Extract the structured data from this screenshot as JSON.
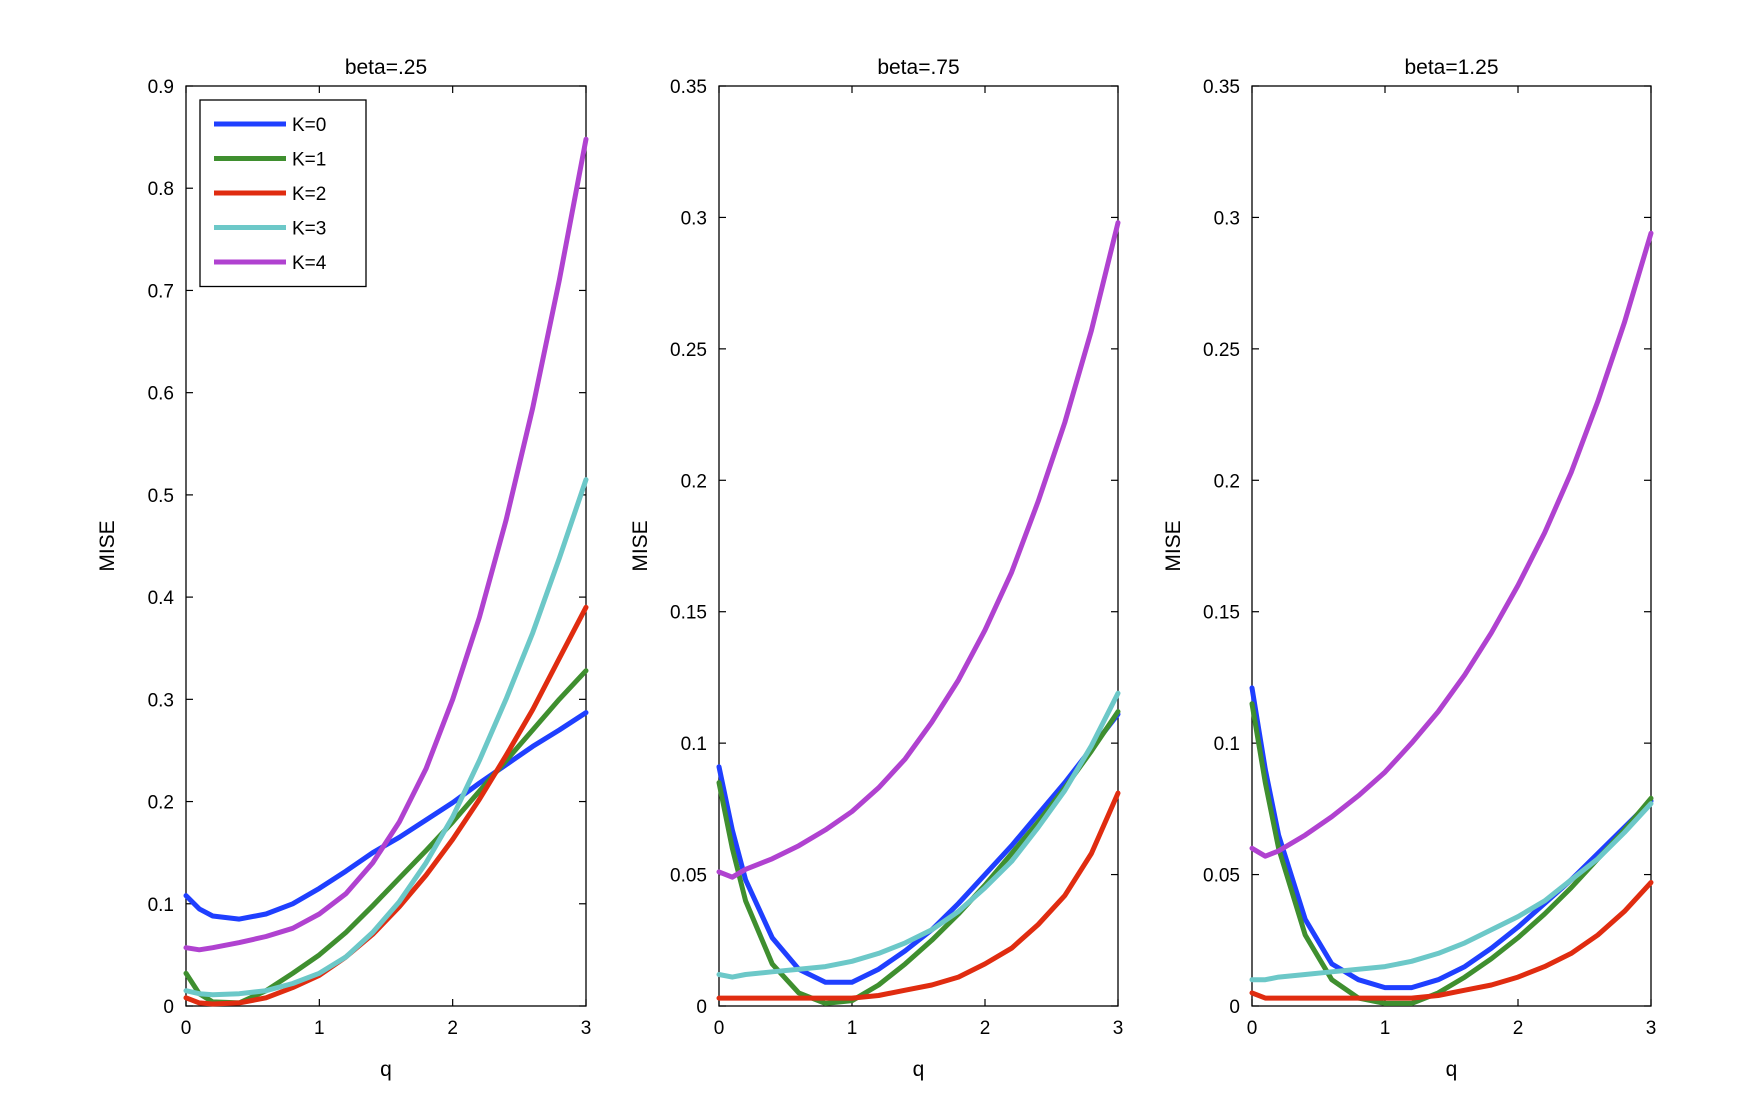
{
  "chart_data": [
    {
      "type": "line",
      "title": "beta=.25",
      "xlabel": "q",
      "ylabel": "MISE",
      "xlim": [
        0,
        3
      ],
      "ylim": [
        0,
        0.9
      ],
      "xticks": [
        0,
        1,
        2,
        3
      ],
      "xtick_labels": [
        "0",
        "1",
        "2",
        "3"
      ],
      "yticks": [
        0,
        0.1,
        0.2,
        0.3,
        0.4,
        0.5,
        0.6,
        0.7,
        0.8,
        0.9
      ],
      "ytick_labels": [
        "0",
        "0.1",
        "0.2",
        "0.3",
        "0.4",
        "0.5",
        "0.6",
        "0.7",
        "0.8",
        "0.9"
      ],
      "legend": "top-left",
      "x": [
        0,
        0.1,
        0.2,
        0.4,
        0.6,
        0.8,
        1.0,
        1.2,
        1.4,
        1.6,
        1.8,
        2.0,
        2.2,
        2.4,
        2.6,
        2.8,
        3.0
      ],
      "series": [
        {
          "name": "K=0",
          "color": "#1f3fff",
          "values": [
            0.108,
            0.095,
            0.088,
            0.085,
            0.09,
            0.1,
            0.115,
            0.132,
            0.15,
            0.165,
            0.182,
            0.199,
            0.218,
            0.236,
            0.254,
            0.27,
            0.287
          ]
        },
        {
          "name": "K=1",
          "color": "#3f8f2f",
          "values": [
            0.032,
            0.012,
            0.004,
            0.003,
            0.015,
            0.032,
            0.05,
            0.072,
            0.098,
            0.125,
            0.152,
            0.18,
            0.21,
            0.24,
            0.27,
            0.3,
            0.328
          ]
        },
        {
          "name": "K=2",
          "color": "#e02c10",
          "values": [
            0.008,
            0.003,
            0.002,
            0.003,
            0.008,
            0.018,
            0.03,
            0.048,
            0.07,
            0.097,
            0.128,
            0.163,
            0.202,
            0.245,
            0.29,
            0.34,
            0.39
          ]
        },
        {
          "name": "K=3",
          "color": "#6cc8c8",
          "values": [
            0.015,
            0.012,
            0.011,
            0.012,
            0.015,
            0.022,
            0.032,
            0.048,
            0.072,
            0.102,
            0.14,
            0.185,
            0.24,
            0.3,
            0.365,
            0.438,
            0.515
          ]
        },
        {
          "name": "K=4",
          "color": "#b042d0",
          "values": [
            0.057,
            0.055,
            0.057,
            0.062,
            0.068,
            0.076,
            0.09,
            0.11,
            0.14,
            0.18,
            0.232,
            0.3,
            0.38,
            0.475,
            0.585,
            0.71,
            0.848
          ]
        }
      ]
    },
    {
      "type": "line",
      "title": "beta=.75",
      "xlabel": "q",
      "ylabel": "MISE",
      "xlim": [
        0,
        3
      ],
      "ylim": [
        0,
        0.35
      ],
      "xticks": [
        0,
        1,
        2,
        3
      ],
      "xtick_labels": [
        "0",
        "1",
        "2",
        "3"
      ],
      "yticks": [
        0,
        0.05,
        0.1,
        0.15,
        0.2,
        0.25,
        0.3,
        0.35
      ],
      "ytick_labels": [
        "0",
        "0.05",
        "0.1",
        "0.15",
        "0.2",
        "0.25",
        "0.3",
        "0.35"
      ],
      "x": [
        0,
        0.1,
        0.2,
        0.4,
        0.6,
        0.8,
        1.0,
        1.2,
        1.4,
        1.6,
        1.8,
        2.0,
        2.2,
        2.4,
        2.6,
        2.8,
        3.0
      ],
      "series": [
        {
          "name": "K=0",
          "color": "#1f3fff",
          "values": [
            0.091,
            0.067,
            0.048,
            0.026,
            0.014,
            0.009,
            0.009,
            0.014,
            0.021,
            0.029,
            0.039,
            0.05,
            0.061,
            0.073,
            0.085,
            0.098,
            0.111
          ]
        },
        {
          "name": "K=1",
          "color": "#3f8f2f",
          "values": [
            0.085,
            0.06,
            0.04,
            0.016,
            0.005,
            0.001,
            0.002,
            0.008,
            0.016,
            0.025,
            0.035,
            0.046,
            0.058,
            0.07,
            0.083,
            0.097,
            0.112
          ]
        },
        {
          "name": "K=2",
          "color": "#e02c10",
          "values": [
            0.003,
            0.003,
            0.003,
            0.003,
            0.003,
            0.003,
            0.003,
            0.004,
            0.006,
            0.008,
            0.011,
            0.016,
            0.022,
            0.031,
            0.042,
            0.058,
            0.081
          ]
        },
        {
          "name": "K=3",
          "color": "#6cc8c8",
          "values": [
            0.012,
            0.011,
            0.012,
            0.013,
            0.014,
            0.015,
            0.017,
            0.02,
            0.024,
            0.029,
            0.036,
            0.045,
            0.055,
            0.068,
            0.082,
            0.099,
            0.119
          ]
        },
        {
          "name": "K=4",
          "color": "#b042d0",
          "values": [
            0.051,
            0.049,
            0.052,
            0.056,
            0.061,
            0.067,
            0.074,
            0.083,
            0.094,
            0.108,
            0.124,
            0.143,
            0.165,
            0.192,
            0.222,
            0.257,
            0.298
          ]
        }
      ]
    },
    {
      "type": "line",
      "title": "beta=1.25",
      "xlabel": "q",
      "ylabel": "MISE",
      "xlim": [
        0,
        3
      ],
      "ylim": [
        0,
        0.35
      ],
      "xticks": [
        0,
        1,
        2,
        3
      ],
      "xtick_labels": [
        "0",
        "1",
        "2",
        "3"
      ],
      "yticks": [
        0,
        0.05,
        0.1,
        0.15,
        0.2,
        0.25,
        0.3,
        0.35
      ],
      "ytick_labels": [
        "0",
        "0.05",
        "0.1",
        "0.15",
        "0.2",
        "0.25",
        "0.3",
        "0.35"
      ],
      "x": [
        0,
        0.1,
        0.2,
        0.4,
        0.6,
        0.8,
        1.0,
        1.2,
        1.4,
        1.6,
        1.8,
        2.0,
        2.2,
        2.4,
        2.6,
        2.8,
        3.0
      ],
      "series": [
        {
          "name": "K=0",
          "color": "#1f3fff",
          "values": [
            0.121,
            0.09,
            0.065,
            0.033,
            0.016,
            0.01,
            0.007,
            0.007,
            0.01,
            0.015,
            0.022,
            0.03,
            0.039,
            0.048,
            0.058,
            0.068,
            0.078
          ]
        },
        {
          "name": "K=1",
          "color": "#3f8f2f",
          "values": [
            0.115,
            0.085,
            0.06,
            0.027,
            0.01,
            0.003,
            0.001,
            0.001,
            0.005,
            0.011,
            0.018,
            0.026,
            0.035,
            0.045,
            0.056,
            0.067,
            0.079
          ]
        },
        {
          "name": "K=2",
          "color": "#e02c10",
          "values": [
            0.005,
            0.003,
            0.003,
            0.003,
            0.003,
            0.003,
            0.003,
            0.003,
            0.004,
            0.006,
            0.008,
            0.011,
            0.015,
            0.02,
            0.027,
            0.036,
            0.047
          ]
        },
        {
          "name": "K=3",
          "color": "#6cc8c8",
          "values": [
            0.01,
            0.01,
            0.011,
            0.012,
            0.013,
            0.014,
            0.015,
            0.017,
            0.02,
            0.024,
            0.029,
            0.034,
            0.04,
            0.048,
            0.056,
            0.066,
            0.077
          ]
        },
        {
          "name": "K=4",
          "color": "#b042d0",
          "values": [
            0.06,
            0.057,
            0.059,
            0.065,
            0.072,
            0.08,
            0.089,
            0.1,
            0.112,
            0.126,
            0.142,
            0.16,
            0.18,
            0.203,
            0.23,
            0.26,
            0.294
          ]
        }
      ]
    }
  ]
}
